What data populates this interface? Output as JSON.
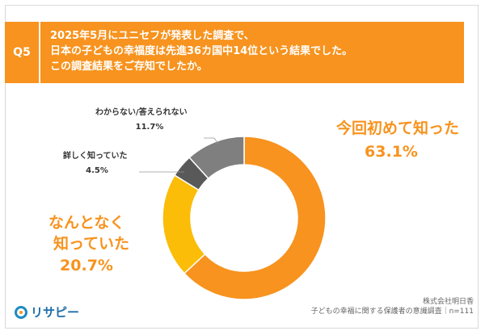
{
  "question": {
    "badge": "Q5",
    "lines": [
      "2025年5月にユニセフが発表した調査で、",
      "日本の子どもの幸福度は先進36カ国中14位という結果でした。",
      "この調査結果をご存知でしたか。"
    ]
  },
  "chart_data": {
    "type": "pie",
    "donut": true,
    "slices": [
      {
        "label_lines": [
          "今回初めて知った"
        ],
        "value_text": "63.1%",
        "value": 63.1,
        "color": "#f7931e"
      },
      {
        "label_lines": [
          "なんとなく",
          "知っていた"
        ],
        "value_text": "20.7%",
        "value": 20.7,
        "color": "#fbbd08"
      },
      {
        "label_lines": [
          "詳しく知っていた"
        ],
        "value_text": "4.5%",
        "value": 4.5,
        "color": "#595959"
      },
      {
        "label_lines": [
          "わからない/答えられない"
        ],
        "value_text": "11.7%",
        "value": 11.7,
        "color": "#7f7f7f"
      }
    ]
  },
  "footer": {
    "logo_text": "リサピー",
    "source_line1": "株式会社明日香",
    "source_line2": "子どもの幸福に関する保護者の意識調査｜n=111"
  },
  "colors": {
    "accent": "#f7931e",
    "label_orange": "#f7931e",
    "label_dark": "#333333"
  }
}
